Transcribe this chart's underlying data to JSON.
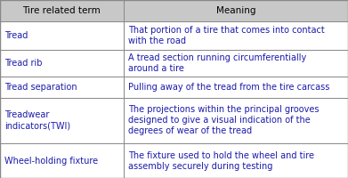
{
  "header": [
    "Tire related term",
    "Meaning"
  ],
  "rows": [
    [
      "Tread",
      "That portion of a tire that comes into contact\nwith the road"
    ],
    [
      "Tread rib",
      "A tread section running circumferentially\naround a tire"
    ],
    [
      "Tread separation",
      "Pulling away of the tread from the tire carcass"
    ],
    [
      "Treadwear\nindicators(TWI)",
      "The projections within the principal grooves\ndesigned to give a visual indication of the\ndegrees of wear of the tread"
    ],
    [
      "Wheel-holding fixture",
      "The fixture used to hold the wheel and tire\nassembly securely during testing"
    ]
  ],
  "header_bg": "#c8c8c8",
  "row_bg": "#ffffff",
  "border_color": "#888888",
  "header_text_color": "#000000",
  "cell_text_color": "#1a1aaa",
  "col_split": 0.355,
  "header_fontsize": 7.5,
  "cell_fontsize": 7.0,
  "fig_width": 3.91,
  "fig_height": 2.0
}
